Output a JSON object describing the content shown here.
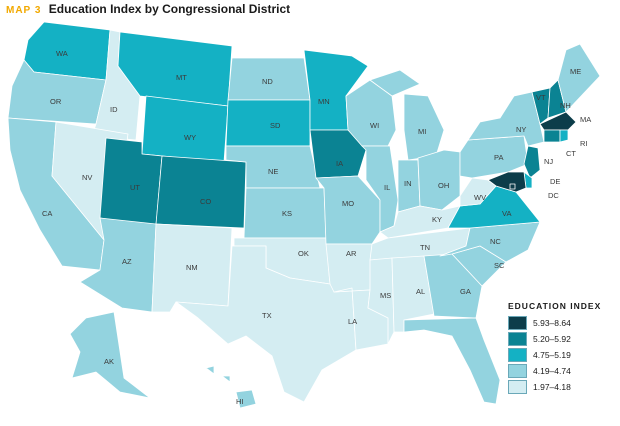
{
  "header": {
    "map_number": "MAP 3",
    "title": "Education Index by Congressional District"
  },
  "legend": {
    "title": "EDUCATION INDEX",
    "items": [
      {
        "label": "5.93–8.64",
        "color": "#0c3d4a"
      },
      {
        "label": "5.20–5.92",
        "color": "#0b8393"
      },
      {
        "label": "4.75–5.19",
        "color": "#14b1c4"
      },
      {
        "label": "4.19–4.74",
        "color": "#93d3df"
      },
      {
        "label": "1.97–4.18",
        "color": "#d4edf2"
      }
    ]
  },
  "states": [
    {
      "abbr": "WA",
      "fill": "#14b1c4"
    },
    {
      "abbr": "OR",
      "fill": "#93d3df"
    },
    {
      "abbr": "CA",
      "fill": "#93d3df"
    },
    {
      "abbr": "ID",
      "fill": "#d4edf2"
    },
    {
      "abbr": "NV",
      "fill": "#d4edf2"
    },
    {
      "abbr": "MT",
      "fill": "#14b1c4"
    },
    {
      "abbr": "WY",
      "fill": "#14b1c4"
    },
    {
      "abbr": "UT",
      "fill": "#0b8393"
    },
    {
      "abbr": "CO",
      "fill": "#0b8393"
    },
    {
      "abbr": "AZ",
      "fill": "#93d3df"
    },
    {
      "abbr": "NM",
      "fill": "#d4edf2"
    },
    {
      "abbr": "ND",
      "fill": "#93d3df"
    },
    {
      "abbr": "SD",
      "fill": "#14b1c4"
    },
    {
      "abbr": "NE",
      "fill": "#93d3df"
    },
    {
      "abbr": "KS",
      "fill": "#93d3df"
    },
    {
      "abbr": "OK",
      "fill": "#d4edf2"
    },
    {
      "abbr": "TX",
      "fill": "#d4edf2"
    },
    {
      "abbr": "MN",
      "fill": "#14b1c4"
    },
    {
      "abbr": "IA",
      "fill": "#0b8393"
    },
    {
      "abbr": "MO",
      "fill": "#93d3df"
    },
    {
      "abbr": "AR",
      "fill": "#d4edf2"
    },
    {
      "abbr": "LA",
      "fill": "#d4edf2"
    },
    {
      "abbr": "WI",
      "fill": "#93d3df"
    },
    {
      "abbr": "IL",
      "fill": "#93d3df"
    },
    {
      "abbr": "MI",
      "fill": "#93d3df"
    },
    {
      "abbr": "IN",
      "fill": "#93d3df"
    },
    {
      "abbr": "OH",
      "fill": "#93d3df"
    },
    {
      "abbr": "KY",
      "fill": "#d4edf2"
    },
    {
      "abbr": "TN",
      "fill": "#d4edf2"
    },
    {
      "abbr": "MS",
      "fill": "#d4edf2"
    },
    {
      "abbr": "AL",
      "fill": "#d4edf2"
    },
    {
      "abbr": "GA",
      "fill": "#93d3df"
    },
    {
      "abbr": "FL",
      "fill": "#93d3df"
    },
    {
      "abbr": "SC",
      "fill": "#93d3df"
    },
    {
      "abbr": "NC",
      "fill": "#93d3df"
    },
    {
      "abbr": "VA",
      "fill": "#14b1c4"
    },
    {
      "abbr": "WV",
      "fill": "#d4edf2"
    },
    {
      "abbr": "PA",
      "fill": "#93d3df"
    },
    {
      "abbr": "NY",
      "fill": "#93d3df"
    },
    {
      "abbr": "VT",
      "fill": "#0b8393"
    },
    {
      "abbr": "NH",
      "fill": "#0b8393"
    },
    {
      "abbr": "ME",
      "fill": "#93d3df"
    },
    {
      "abbr": "MA",
      "fill": "#0c3d4a"
    },
    {
      "abbr": "CT",
      "fill": "#0b8393"
    },
    {
      "abbr": "RI",
      "fill": "#14b1c4"
    },
    {
      "abbr": "NJ",
      "fill": "#0b8393"
    },
    {
      "abbr": "DE",
      "fill": "#14b1c4"
    },
    {
      "abbr": "MD",
      "fill": "#0c3d4a"
    },
    {
      "abbr": "DC",
      "fill": "#0c3d4a"
    },
    {
      "abbr": "AK",
      "fill": "#93d3df"
    },
    {
      "abbr": "HI",
      "fill": "#93d3df"
    }
  ]
}
